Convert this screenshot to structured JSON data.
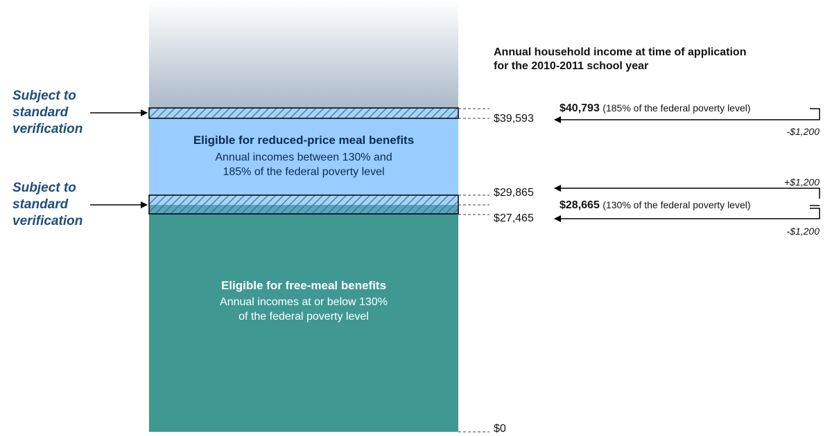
{
  "header": {
    "line1": "Annual household income at time of application",
    "line2": "for the 2010-2011 school year"
  },
  "side_labels": [
    {
      "line1": "Subject to",
      "line2": "standard",
      "line3": "verification"
    },
    {
      "line1": "Subject to",
      "line2": "standard",
      "line3": "verification"
    }
  ],
  "zones": {
    "reduced": {
      "title": "Eligible for reduced-price meal benefits",
      "desc1": "Annual incomes between 130% and",
      "desc2": "185% of the federal poverty level"
    },
    "free": {
      "title": "Eligible for free-meal benefits",
      "desc1": "Annual incomes at or below 130%",
      "desc2": "of the federal poverty level"
    }
  },
  "values": {
    "v40793": {
      "amount": "$40,793",
      "note": "(185% of the federal poverty level)"
    },
    "v39593": "$39,593",
    "v29865": "$29,865",
    "v28665": {
      "amount": "$28,665",
      "note": "(130% of the federal poverty level)"
    },
    "v27465": "$27,465",
    "v0": "$0"
  },
  "adjustments": {
    "a1": "-$1,200",
    "a2": "+$1,200",
    "a3": "-$1,200"
  },
  "colors": {
    "reduced_zone": "#99ccff",
    "free_zone": "#3f9891",
    "label_text": "#1f4e79",
    "hatch": "#5b8fc8"
  }
}
